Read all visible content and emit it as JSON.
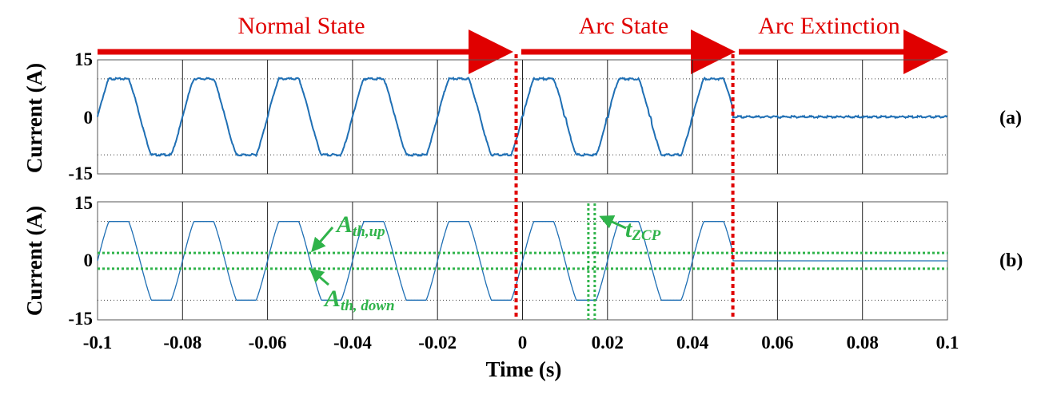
{
  "states": {
    "normal": "Normal State",
    "arc": "Arc State",
    "extinction": "Arc Extinction"
  },
  "panel_tags": {
    "a": "(a)",
    "b": "(b)"
  },
  "annotations": {
    "th_up_main": "A",
    "th_up_sub": "th,up",
    "th_down_main": "A",
    "th_down_sub": "th, down",
    "tzcp_main": "t",
    "tzcp_sub": "ZCP"
  },
  "colors": {
    "signal": "#1f6fb4",
    "state_arrow": "#e00000",
    "state_boundary": "#e00000",
    "threshold": "#2fb34a"
  },
  "chart_data": [
    {
      "panel": "a",
      "type": "line",
      "title": "",
      "xlabel": "",
      "ylabel": "Current (A)",
      "xlim": [
        -0.1,
        0.1
      ],
      "ylim": [
        -15,
        15
      ],
      "yticks": [
        "15",
        "0",
        "-15"
      ],
      "y_dotted_refs": [
        10,
        -10
      ],
      "grid": true,
      "series": [
        {
          "signal": "sinusoid, frequency 50 Hz, peak clipped at ±10 A",
          "x_range": [
            -0.1,
            0.0
          ],
          "amplitude": 10
        },
        {
          "signal": "distorted sinusoid with flat shoulders near zero crossings",
          "x_range": [
            0.0,
            0.05
          ],
          "amplitude": 10
        },
        {
          "signal": "approximately 0 A",
          "x_range": [
            0.05,
            0.1
          ],
          "amplitude": 0
        }
      ]
    },
    {
      "panel": "b",
      "type": "line",
      "title": "",
      "xlabel": "Time (s)",
      "ylabel": "Current (A)",
      "xlim": [
        -0.1,
        0.1
      ],
      "ylim": [
        -15,
        15
      ],
      "yticks": [
        "15",
        "0",
        "-15"
      ],
      "xticks": [
        "-0.1",
        "-0.08",
        "-0.06",
        "-0.04",
        "-0.02",
        "0",
        "0.02",
        "0.04",
        "0.06",
        "0.08",
        "0.1"
      ],
      "thresholds": {
        "A_th_up": 2,
        "A_th_down": -2
      },
      "t_zcp_markers": [
        0.0155,
        0.017
      ],
      "state_boundaries": [
        -0.0015,
        0.0495
      ],
      "grid": true
    }
  ]
}
